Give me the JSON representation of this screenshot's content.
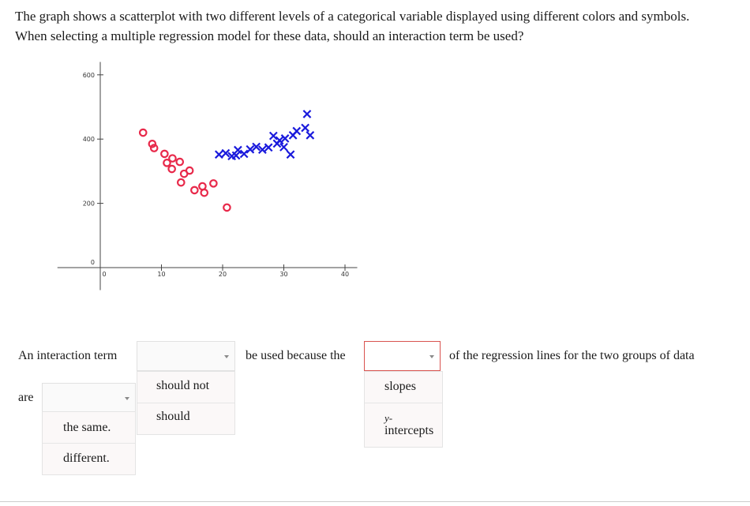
{
  "question": {
    "line1": "The graph shows a scatterplot with two different levels of a categorical variable displayed using different colors and symbols.",
    "line2": "When selecting a multiple regression model for these data, should an interaction term be used?"
  },
  "chart_data": {
    "type": "scatter",
    "title": "",
    "xlabel": "",
    "ylabel": "",
    "xlim": [
      -7,
      42
    ],
    "ylim": [
      -70,
      640
    ],
    "x_ticks": [
      "0",
      "10",
      "20",
      "30",
      "40"
    ],
    "y_ticks": [
      "0",
      "200",
      "400",
      "600"
    ],
    "grid": false,
    "legend": "none",
    "series": [
      {
        "marker": "circle",
        "color": "#e8294a",
        "points": [
          [
            7,
            420
          ],
          [
            8.5,
            385
          ],
          [
            8.8,
            372
          ],
          [
            10.5,
            354
          ],
          [
            11.8,
            340
          ],
          [
            10.9,
            326
          ],
          [
            13,
            329
          ],
          [
            11.7,
            307
          ],
          [
            14.6,
            302
          ],
          [
            13.7,
            292
          ],
          [
            13.2,
            265
          ],
          [
            16.7,
            253
          ],
          [
            15.4,
            241
          ],
          [
            17,
            233
          ],
          [
            18.5,
            262
          ],
          [
            20.7,
            187
          ]
        ]
      },
      {
        "marker": "x",
        "color": "#1a1adc",
        "points": [
          [
            19.4,
            352
          ],
          [
            20.5,
            356
          ],
          [
            21.5,
            347
          ],
          [
            22.5,
            366
          ],
          [
            22.2,
            349
          ],
          [
            23.5,
            354
          ],
          [
            24.5,
            368
          ],
          [
            25.5,
            376
          ],
          [
            26.5,
            367
          ],
          [
            27.5,
            374
          ],
          [
            28.3,
            410
          ],
          [
            28.9,
            386
          ],
          [
            29.3,
            396
          ],
          [
            30.2,
            402
          ],
          [
            30,
            375
          ],
          [
            31.1,
            352
          ],
          [
            31.5,
            412
          ],
          [
            32.1,
            425
          ],
          [
            33.5,
            435
          ],
          [
            34.3,
            412
          ],
          [
            33.8,
            478
          ]
        ]
      }
    ]
  },
  "answer": {
    "prefix": "An interaction term",
    "middle": "be used because the",
    "suffix": "of the regression lines for the two groups of data",
    "are_label": "are",
    "dropdown1": {
      "selected": "",
      "options": [
        "should not",
        "should"
      ]
    },
    "dropdown2": {
      "selected": "",
      "options": [
        "slopes",
        "y-",
        "intercepts"
      ]
    },
    "dropdown3": {
      "selected": "",
      "options": [
        "the same.",
        "different."
      ]
    }
  }
}
